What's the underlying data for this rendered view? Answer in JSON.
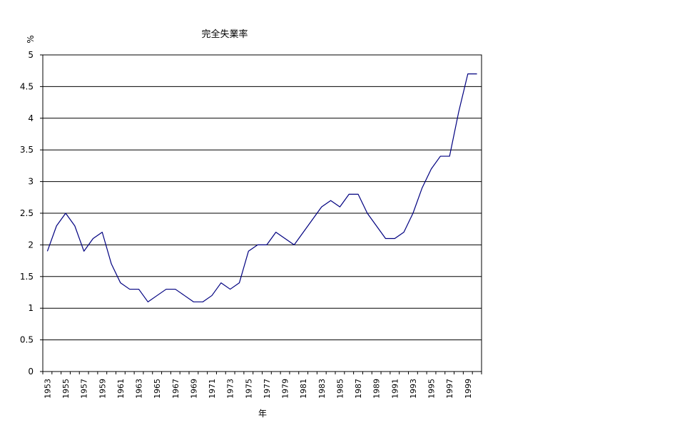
{
  "chart_data": {
    "type": "line",
    "title": "完全失業率",
    "xlabel": "年",
    "ylabel": "%",
    "ylim": [
      0,
      5
    ],
    "yticks": [
      "0",
      "0.5",
      "1",
      "1.5",
      "2",
      "2.5",
      "3",
      "3.5",
      "4",
      "4.5",
      "5"
    ],
    "x": [
      "1953",
      "1954",
      "1955",
      "1956",
      "1957",
      "1958",
      "1959",
      "1960",
      "1961",
      "1962",
      "1963",
      "1964",
      "1965",
      "1966",
      "1967",
      "1968",
      "1969",
      "1970",
      "1971",
      "1972",
      "1973",
      "1974",
      "1975",
      "1976",
      "1977",
      "1978",
      "1979",
      "1980",
      "1981",
      "1982",
      "1983",
      "1984",
      "1985",
      "1986",
      "1987",
      "1988",
      "1989",
      "1990",
      "1991",
      "1992",
      "1993",
      "1994",
      "1995",
      "1996",
      "1997",
      "1998",
      "1999",
      "2000"
    ],
    "xtick_labels": [
      "1953",
      "1955",
      "1957",
      "1959",
      "1961",
      "1963",
      "1965",
      "1967",
      "1969",
      "1971",
      "1973",
      "1975",
      "1977",
      "1979",
      "1981",
      "1983",
      "1985",
      "1987",
      "1989",
      "1991",
      "1993",
      "1995",
      "1997",
      "1999"
    ],
    "series": [
      {
        "values": [
          1.9,
          2.3,
          2.5,
          2.3,
          1.9,
          2.1,
          2.2,
          1.7,
          1.4,
          1.3,
          1.3,
          1.1,
          1.2,
          1.3,
          1.3,
          1.2,
          1.1,
          1.1,
          1.2,
          1.4,
          1.3,
          1.4,
          1.9,
          2.0,
          2.0,
          2.2,
          2.1,
          2.0,
          2.2,
          2.4,
          2.6,
          2.7,
          2.6,
          2.8,
          2.8,
          2.5,
          2.3,
          2.1,
          2.1,
          2.2,
          2.5,
          2.9,
          3.2,
          3.4,
          3.4,
          4.1,
          4.7,
          4.7
        ],
        "color": "#000080"
      }
    ],
    "grid": true,
    "legend": "none"
  }
}
